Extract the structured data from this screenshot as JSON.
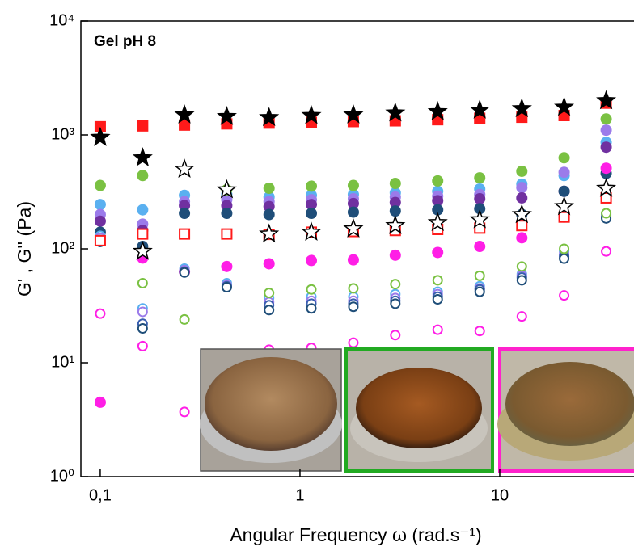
{
  "chart_data": {
    "type": "scatter",
    "annotation": "Gel pH 8",
    "x_label": "Angular Frequency ω (rad.s⁻¹)",
    "y_label": "G' , G'' (Pa)",
    "x": [
      0.1,
      0.163,
      0.264,
      0.43,
      0.7,
      1.14,
      1.85,
      3,
      4.89,
      7.94,
      12.9,
      21,
      34.1
    ],
    "xlim": [
      0.08,
      47
    ],
    "ylim": [
      1,
      10000
    ],
    "log_x": true,
    "log_y": true,
    "xticks": [
      {
        "value": 0.1,
        "label": "0,1"
      },
      1,
      10
    ],
    "yticks": [
      {
        "value": 1,
        "label": "10⁰"
      },
      {
        "value": 10,
        "label": "10¹"
      },
      {
        "value": 100,
        "label": "10²"
      },
      {
        "value": 1000,
        "label": "10³"
      },
      {
        "value": 10000,
        "label": "10⁴"
      }
    ],
    "series": [
      {
        "marker": "circle",
        "filled": true,
        "color": "#5ab0f0",
        "values": [
          245,
          220,
          295,
          300,
          285,
          295,
          300,
          310,
          320,
          335,
          370,
          440,
          860
        ]
      },
      {
        "marker": "circle",
        "filled": true,
        "color": "#9b7bea",
        "values": [
          200,
          165,
          260,
          270,
          260,
          270,
          275,
          285,
          290,
          300,
          345,
          470,
          1100
        ]
      },
      {
        "marker": "circle",
        "filled": true,
        "color": "#7030a0",
        "values": [
          175,
          145,
          240,
          240,
          235,
          245,
          250,
          255,
          265,
          275,
          280,
          320,
          780
        ]
      },
      {
        "marker": "circle",
        "filled": true,
        "color": "#1f4e79",
        "values": [
          140,
          105,
          205,
          205,
          200,
          205,
          210,
          215,
          220,
          225,
          200,
          320,
          460
        ]
      },
      {
        "marker": "circle",
        "filled": true,
        "color": "#7ac142",
        "values": [
          360,
          440,
          null,
          330,
          340,
          355,
          360,
          375,
          395,
          420,
          480,
          630,
          1380
        ]
      },
      {
        "marker": "circle",
        "filled": true,
        "color": "#ff1ee6",
        "values": [
          4.5,
          83,
          63,
          70,
          74,
          79,
          80,
          88,
          93,
          105,
          125,
          190,
          510
        ]
      },
      {
        "marker": "circle",
        "filled": false,
        "color": "#5ab0f0",
        "values": [
          130,
          30,
          67,
          50,
          37,
          38,
          38,
          40,
          42,
          47,
          60,
          95,
          200
        ]
      },
      {
        "marker": "circle",
        "filled": false,
        "color": "#9b7bea",
        "values": [
          125,
          28,
          65,
          48,
          34,
          35,
          35,
          37,
          40,
          45,
          58,
          90,
          195
        ]
      },
      {
        "marker": "circle",
        "filled": false,
        "color": "#3a5fb0",
        "values": [
          120,
          22,
          63,
          47,
          32,
          33,
          33,
          35,
          38,
          44,
          56,
          86,
          190
        ]
      },
      {
        "marker": "circle",
        "filled": false,
        "color": "#1f4e79",
        "values": [
          115,
          20,
          62,
          46,
          29,
          30,
          31,
          33,
          36,
          42,
          53,
          82,
          185
        ]
      },
      {
        "marker": "circle",
        "filled": false,
        "color": "#7ac142",
        "values": [
          null,
          50,
          24,
          null,
          41,
          44,
          45,
          49,
          53,
          58,
          70,
          100,
          205
        ]
      },
      {
        "marker": "circle",
        "filled": false,
        "color": "#ff1ee6",
        "values": [
          27,
          14,
          3.7,
          null,
          13,
          13.5,
          15,
          17.5,
          19.5,
          19,
          25.5,
          39,
          95
        ]
      },
      {
        "marker": "square",
        "filled": true,
        "color": "#ff1a1a",
        "values": [
          1180,
          1200,
          1220,
          1250,
          1270,
          1290,
          1310,
          1330,
          1360,
          1400,
          1430,
          1480,
          1900
        ]
      },
      {
        "marker": "square",
        "filled": false,
        "color": "#ff1a1a",
        "values": [
          118,
          135,
          135,
          135,
          134,
          140,
          142,
          145,
          148,
          152,
          160,
          190,
          280
        ]
      },
      {
        "marker": "star",
        "filled": false,
        "color": "#000000",
        "values": [
          950,
          95,
          500,
          330,
          135,
          140,
          150,
          160,
          170,
          180,
          200,
          235,
          340
        ]
      },
      {
        "marker": "star",
        "filled": true,
        "color": "#000000",
        "values": [
          950,
          630,
          1500,
          1450,
          1420,
          1480,
          1500,
          1560,
          1600,
          1650,
          1700,
          1750,
          2000
        ]
      }
    ]
  }
}
